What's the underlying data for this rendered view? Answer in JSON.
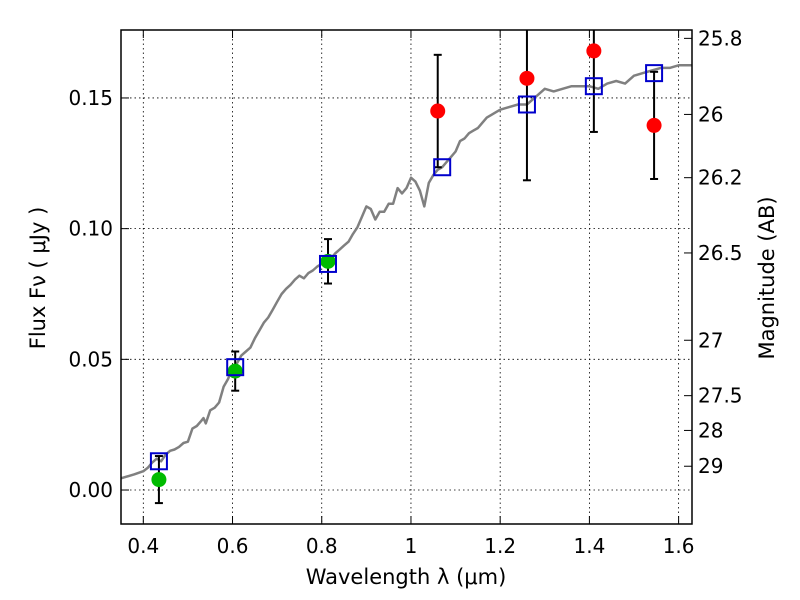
{
  "chart_data": {
    "type": "scatter",
    "xlabel": "Wavelength  λ (μm)",
    "ylabel": "Flux  Fν ( μJy )",
    "ylabel_right": "Magnitude (AB)",
    "xlim": [
      0.35,
      1.63
    ],
    "ylim": [
      -0.013,
      0.176
    ],
    "grid": true,
    "x_ticks": [
      0.4,
      0.6,
      0.8,
      1.0,
      1.2,
      1.4,
      1.6
    ],
    "x_tick_labels": [
      "0.4",
      "0.6",
      "0.8",
      "1",
      "1.2",
      "1.4",
      "1.6"
    ],
    "y_ticks": [
      0.0,
      0.05,
      0.1,
      0.15
    ],
    "y_tick_labels": [
      "0.00",
      "0.05",
      "0.10",
      "0.15"
    ],
    "right_ticks": [
      {
        "label": "25.8",
        "flux": 0.1728
      },
      {
        "label": "26",
        "flux": 0.1437
      },
      {
        "label": "26.2",
        "flux": 0.1195
      },
      {
        "label": "26.5",
        "flux": 0.0907
      },
      {
        "label": "27",
        "flux": 0.0573
      },
      {
        "label": "27.5",
        "flux": 0.0361
      },
      {
        "label": "28",
        "flux": 0.0228
      },
      {
        "label": "29",
        "flux": 0.0091
      }
    ],
    "series": [
      {
        "kind": "observed-green",
        "color": "#00bb00",
        "points": [
          {
            "x": 0.435,
            "y": 0.004,
            "err": 0.009
          },
          {
            "x": 0.606,
            "y": 0.0455,
            "err": 0.0075
          },
          {
            "x": 0.814,
            "y": 0.0875,
            "err": 0.0085
          }
        ]
      },
      {
        "kind": "observed-red",
        "color": "#ff0000",
        "points": [
          {
            "x": 1.06,
            "y": 0.145,
            "err": 0.0215
          },
          {
            "x": 1.26,
            "y": 0.1575,
            "err": 0.039
          },
          {
            "x": 1.41,
            "y": 0.168,
            "err": 0.031
          },
          {
            "x": 1.545,
            "y": 0.1395,
            "err": 0.0205
          }
        ]
      },
      {
        "kind": "model-squares",
        "color": "#0000cc",
        "points": [
          {
            "x": 0.435,
            "y": 0.011
          },
          {
            "x": 0.606,
            "y": 0.047
          },
          {
            "x": 0.814,
            "y": 0.0865
          },
          {
            "x": 1.07,
            "y": 0.1235
          },
          {
            "x": 1.26,
            "y": 0.1475
          },
          {
            "x": 1.41,
            "y": 0.1545
          },
          {
            "x": 1.545,
            "y": 0.1595
          }
        ]
      },
      {
        "kind": "model-spectrum",
        "color": "#808080",
        "points": [
          [
            0.35,
            0.0045
          ],
          [
            0.38,
            0.006
          ],
          [
            0.4,
            0.0072
          ],
          [
            0.41,
            0.0085
          ],
          [
            0.42,
            0.0105
          ],
          [
            0.43,
            0.012
          ],
          [
            0.44,
            0.011
          ],
          [
            0.45,
            0.0135
          ],
          [
            0.46,
            0.015
          ],
          [
            0.47,
            0.0155
          ],
          [
            0.48,
            0.0165
          ],
          [
            0.49,
            0.018
          ],
          [
            0.5,
            0.0185
          ],
          [
            0.51,
            0.0235
          ],
          [
            0.52,
            0.0245
          ],
          [
            0.53,
            0.0265
          ],
          [
            0.535,
            0.0275
          ],
          [
            0.54,
            0.0255
          ],
          [
            0.55,
            0.0305
          ],
          [
            0.56,
            0.0315
          ],
          [
            0.57,
            0.0335
          ],
          [
            0.58,
            0.0395
          ],
          [
            0.59,
            0.0425
          ],
          [
            0.6,
            0.047
          ],
          [
            0.61,
            0.0485
          ],
          [
            0.62,
            0.0515
          ],
          [
            0.63,
            0.053
          ],
          [
            0.64,
            0.0545
          ],
          [
            0.65,
            0.058
          ],
          [
            0.66,
            0.061
          ],
          [
            0.67,
            0.064
          ],
          [
            0.68,
            0.066
          ],
          [
            0.69,
            0.069
          ],
          [
            0.7,
            0.072
          ],
          [
            0.71,
            0.075
          ],
          [
            0.72,
            0.077
          ],
          [
            0.73,
            0.0785
          ],
          [
            0.74,
            0.0805
          ],
          [
            0.75,
            0.082
          ],
          [
            0.76,
            0.081
          ],
          [
            0.77,
            0.083
          ],
          [
            0.78,
            0.084
          ],
          [
            0.79,
            0.0855
          ],
          [
            0.8,
            0.0865
          ],
          [
            0.81,
            0.087
          ],
          [
            0.82,
            0.0885
          ],
          [
            0.83,
            0.0905
          ],
          [
            0.84,
            0.092
          ],
          [
            0.85,
            0.0935
          ],
          [
            0.86,
            0.095
          ],
          [
            0.87,
            0.098
          ],
          [
            0.88,
            0.1005
          ],
          [
            0.89,
            0.1045
          ],
          [
            0.9,
            0.1085
          ],
          [
            0.91,
            0.1075
          ],
          [
            0.92,
            0.1035
          ],
          [
            0.93,
            0.1065
          ],
          [
            0.94,
            0.1065
          ],
          [
            0.95,
            0.1095
          ],
          [
            0.96,
            0.1095
          ],
          [
            0.97,
            0.1155
          ],
          [
            0.98,
            0.1135
          ],
          [
            0.99,
            0.1155
          ],
          [
            1.0,
            0.1195
          ],
          [
            1.01,
            0.118
          ],
          [
            1.02,
            0.1145
          ],
          [
            1.03,
            0.1085
          ],
          [
            1.04,
            0.1175
          ],
          [
            1.05,
            0.1205
          ],
          [
            1.06,
            0.1225
          ],
          [
            1.07,
            0.1235
          ],
          [
            1.08,
            0.1255
          ],
          [
            1.09,
            0.1275
          ],
          [
            1.1,
            0.1295
          ],
          [
            1.11,
            0.1335
          ],
          [
            1.12,
            0.1345
          ],
          [
            1.13,
            0.1365
          ],
          [
            1.14,
            0.1375
          ],
          [
            1.15,
            0.1385
          ],
          [
            1.16,
            0.1405
          ],
          [
            1.17,
            0.1425
          ],
          [
            1.18,
            0.1435
          ],
          [
            1.19,
            0.1445
          ],
          [
            1.2,
            0.1455
          ],
          [
            1.22,
            0.1465
          ],
          [
            1.24,
            0.1475
          ],
          [
            1.26,
            0.1475
          ],
          [
            1.28,
            0.1505
          ],
          [
            1.3,
            0.1535
          ],
          [
            1.32,
            0.1525
          ],
          [
            1.34,
            0.1535
          ],
          [
            1.36,
            0.1545
          ],
          [
            1.38,
            0.1545
          ],
          [
            1.4,
            0.1545
          ],
          [
            1.42,
            0.1535
          ],
          [
            1.44,
            0.1555
          ],
          [
            1.46,
            0.1565
          ],
          [
            1.48,
            0.1555
          ],
          [
            1.5,
            0.1585
          ],
          [
            1.52,
            0.1595
          ],
          [
            1.54,
            0.1605
          ],
          [
            1.56,
            0.1615
          ],
          [
            1.58,
            0.1615
          ],
          [
            1.6,
            0.1625
          ],
          [
            1.63,
            0.1625
          ]
        ]
      }
    ]
  }
}
